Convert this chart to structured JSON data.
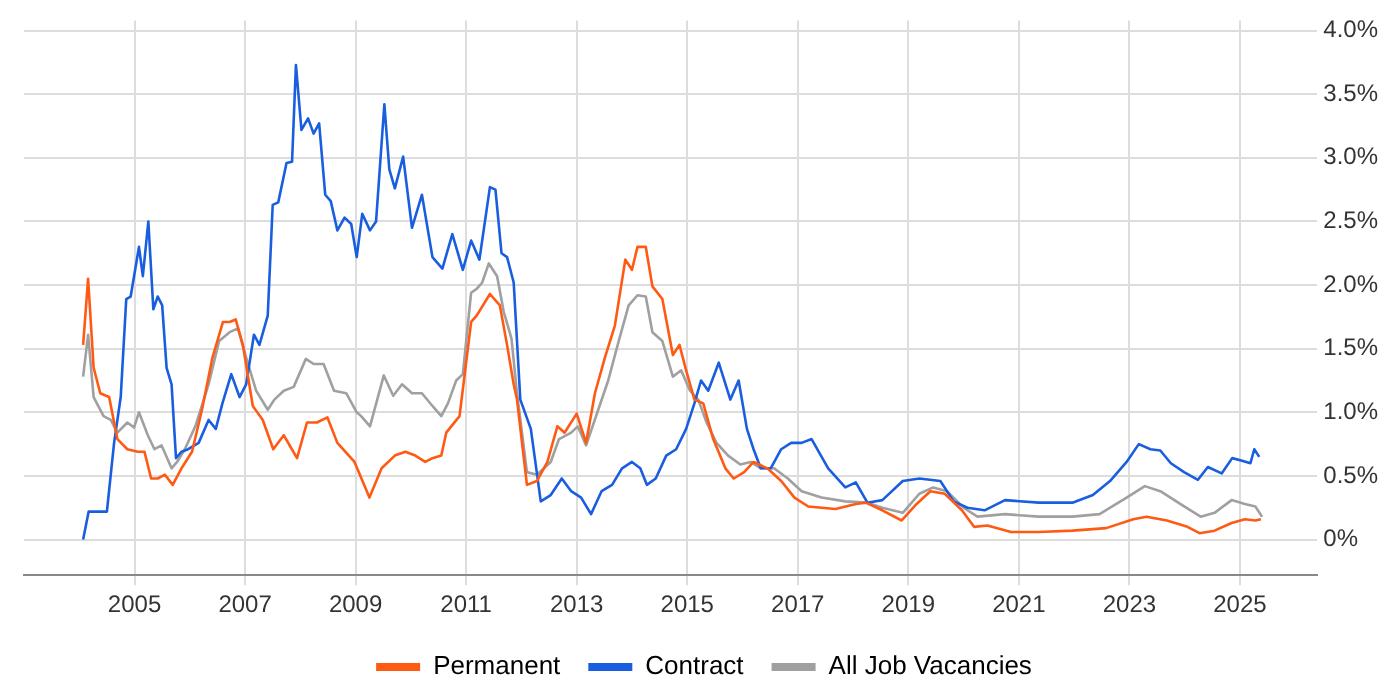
{
  "chart_data": {
    "type": "line",
    "xlim": [
      2003.0,
      2026.4
    ],
    "xticks": [
      2005,
      2007,
      2009,
      2011,
      2013,
      2015,
      2017,
      2019,
      2021,
      2023,
      2025
    ],
    "ylim": [
      -0.28,
      4.08
    ],
    "yticks": [
      {
        "value": 0,
        "label": "0%"
      },
      {
        "value": 0.5,
        "label": "0.5%"
      },
      {
        "value": 1,
        "label": "1.0%"
      },
      {
        "value": 1.5,
        "label": "1.5%"
      },
      {
        "value": 2,
        "label": "2.0%"
      },
      {
        "value": 2.5,
        "label": "2.5%"
      },
      {
        "value": 3,
        "label": "3.0%"
      },
      {
        "value": 3.5,
        "label": "3.5%"
      },
      {
        "value": 4,
        "label": "4.0%"
      }
    ],
    "grid": true,
    "legend": "bottom",
    "marker": "none",
    "line_style": "solid",
    "series": [
      {
        "name": "Permanent",
        "color": "#ff5a14",
        "x": [
          2004.07,
          2004.16,
          2004.26,
          2004.38,
          2004.54,
          2004.69,
          2004.87,
          2005.06,
          2005.18,
          2005.3,
          2005.42,
          2005.55,
          2005.69,
          2005.85,
          2006.04,
          2006.22,
          2006.41,
          2006.6,
          2006.72,
          2006.83,
          2006.96,
          2007.14,
          2007.32,
          2007.51,
          2007.7,
          2007.94,
          2008.12,
          2008.3,
          2008.49,
          2008.67,
          2008.98,
          2009.25,
          2009.47,
          2009.71,
          2009.9,
          2010.08,
          2010.26,
          2010.39,
          2010.55,
          2010.64,
          2010.88,
          2011.09,
          2011.19,
          2011.43,
          2011.61,
          2011.74,
          2011.86,
          2011.92,
          2012.1,
          2012.28,
          2012.47,
          2012.65,
          2012.78,
          2013.0,
          2013.17,
          2013.33,
          2013.51,
          2013.69,
          2013.88,
          2014.0,
          2014.1,
          2014.25,
          2014.37,
          2014.55,
          2014.74,
          2014.86,
          2014.98,
          2015.13,
          2015.29,
          2015.47,
          2015.69,
          2015.84,
          2016.03,
          2016.2,
          2016.45,
          2016.7,
          2016.94,
          2017.19,
          2017.68,
          2018.05,
          2018.23,
          2018.53,
          2018.88,
          2019.15,
          2019.4,
          2019.66,
          2019.97,
          2020.19,
          2020.43,
          2020.86,
          2021.36,
          2021.97,
          2022.58,
          2023.07,
          2023.31,
          2023.68,
          2024.05,
          2024.27,
          2024.54,
          2024.85,
          2025.09,
          2025.28,
          2025.38
        ],
        "values": [
          1.53,
          2.05,
          1.35,
          1.15,
          1.12,
          0.79,
          0.71,
          0.69,
          0.69,
          0.48,
          0.48,
          0.51,
          0.43,
          0.56,
          0.69,
          1.02,
          1.43,
          1.71,
          1.71,
          1.73,
          1.53,
          1.05,
          0.94,
          0.71,
          0.82,
          0.64,
          0.92,
          0.92,
          0.96,
          0.76,
          0.61,
          0.33,
          0.56,
          0.66,
          0.69,
          0.66,
          0.61,
          0.64,
          0.66,
          0.84,
          0.97,
          1.71,
          1.76,
          1.93,
          1.84,
          1.53,
          1.22,
          1.1,
          0.43,
          0.46,
          0.61,
          0.89,
          0.84,
          0.99,
          0.76,
          1.15,
          1.43,
          1.68,
          2.2,
          2.12,
          2.3,
          2.3,
          1.99,
          1.89,
          1.45,
          1.53,
          1.33,
          1.1,
          1.07,
          0.79,
          0.56,
          0.48,
          0.53,
          0.61,
          0.56,
          0.46,
          0.33,
          0.26,
          0.24,
          0.28,
          0.29,
          0.23,
          0.15,
          0.28,
          0.38,
          0.36,
          0.23,
          0.1,
          0.11,
          0.06,
          0.06,
          0.07,
          0.09,
          0.16,
          0.18,
          0.15,
          0.1,
          0.05,
          0.07,
          0.13,
          0.16,
          0.15,
          0.16
        ]
      },
      {
        "name": "Contract",
        "color": "#1a5ee0",
        "x": [
          2004.07,
          2004.17,
          2004.5,
          2004.63,
          2004.75,
          2004.85,
          2004.93,
          2005.08,
          2005.15,
          2005.25,
          2005.34,
          2005.42,
          2005.5,
          2005.58,
          2005.67,
          2005.75,
          2005.85,
          2005.97,
          2006.16,
          2006.34,
          2006.47,
          2006.59,
          2006.75,
          2006.9,
          2007.02,
          2007.16,
          2007.26,
          2007.41,
          2007.5,
          2007.6,
          2007.75,
          2007.85,
          2007.92,
          2008.02,
          2008.14,
          2008.24,
          2008.34,
          2008.45,
          2008.55,
          2008.67,
          2008.8,
          2008.92,
          2009.02,
          2009.12,
          2009.26,
          2009.37,
          2009.52,
          2009.61,
          2009.71,
          2009.86,
          2010.02,
          2010.2,
          2010.39,
          2010.57,
          2010.75,
          2010.94,
          2011.09,
          2011.24,
          2011.43,
          2011.53,
          2011.64,
          2011.74,
          2011.86,
          2011.98,
          2012.17,
          2012.35,
          2012.53,
          2012.73,
          2012.9,
          2013.08,
          2013.26,
          2013.45,
          2013.64,
          2013.82,
          2014.0,
          2014.15,
          2014.27,
          2014.43,
          2014.62,
          2014.8,
          2014.98,
          2015.13,
          2015.25,
          2015.38,
          2015.57,
          2015.78,
          2015.93,
          2016.08,
          2016.2,
          2016.33,
          2016.51,
          2016.7,
          2016.88,
          2017.07,
          2017.25,
          2017.55,
          2017.86,
          2018.05,
          2018.26,
          2018.53,
          2018.9,
          2019.2,
          2019.58,
          2019.82,
          2020.07,
          2020.38,
          2020.75,
          2021.36,
          2021.97,
          2022.34,
          2022.65,
          2022.95,
          2023.17,
          2023.38,
          2023.56,
          2023.75,
          2023.99,
          2024.24,
          2024.42,
          2024.67,
          2024.86,
          2025.04,
          2025.19,
          2025.26,
          2025.35
        ],
        "values": [
          0.0,
          0.22,
          0.22,
          0.76,
          1.12,
          1.89,
          1.91,
          2.3,
          2.07,
          2.5,
          1.81,
          1.91,
          1.84,
          1.35,
          1.22,
          0.64,
          0.69,
          0.71,
          0.76,
          0.94,
          0.87,
          1.07,
          1.3,
          1.12,
          1.22,
          1.61,
          1.53,
          1.76,
          2.63,
          2.65,
          2.96,
          2.97,
          3.73,
          3.22,
          3.31,
          3.19,
          3.27,
          2.71,
          2.66,
          2.43,
          2.53,
          2.48,
          2.22,
          2.56,
          2.43,
          2.5,
          3.42,
          2.91,
          2.76,
          3.01,
          2.45,
          2.71,
          2.22,
          2.13,
          2.4,
          2.12,
          2.35,
          2.2,
          2.77,
          2.75,
          2.25,
          2.22,
          2.02,
          1.1,
          0.87,
          0.3,
          0.35,
          0.48,
          0.38,
          0.33,
          0.2,
          0.38,
          0.43,
          0.56,
          0.61,
          0.56,
          0.43,
          0.48,
          0.66,
          0.71,
          0.87,
          1.07,
          1.25,
          1.17,
          1.39,
          1.1,
          1.25,
          0.87,
          0.71,
          0.56,
          0.56,
          0.71,
          0.76,
          0.76,
          0.79,
          0.56,
          0.41,
          0.45,
          0.29,
          0.31,
          0.46,
          0.48,
          0.46,
          0.3,
          0.25,
          0.23,
          0.31,
          0.29,
          0.29,
          0.35,
          0.46,
          0.61,
          0.75,
          0.71,
          0.7,
          0.6,
          0.53,
          0.47,
          0.57,
          0.52,
          0.64,
          0.62,
          0.6,
          0.71,
          0.65
        ]
      },
      {
        "name": "All Job Vacancies",
        "color": "#a0a0a0",
        "x": [
          2004.07,
          2004.16,
          2004.26,
          2004.44,
          2004.57,
          2004.69,
          2004.87,
          2004.99,
          2005.08,
          2005.24,
          2005.36,
          2005.49,
          2005.67,
          2005.77,
          2005.91,
          2006.1,
          2006.34,
          2006.53,
          2006.72,
          2006.87,
          2007.02,
          2007.2,
          2007.41,
          2007.53,
          2007.7,
          2007.88,
          2008.1,
          2008.24,
          2008.42,
          2008.61,
          2008.83,
          2009.02,
          2009.1,
          2009.26,
          2009.51,
          2009.68,
          2009.84,
          2010.02,
          2010.2,
          2010.39,
          2010.55,
          2010.67,
          2010.82,
          2010.94,
          2011.09,
          2011.19,
          2011.29,
          2011.41,
          2011.56,
          2011.68,
          2011.82,
          2011.92,
          2012.1,
          2012.28,
          2012.53,
          2012.68,
          2012.9,
          2013.02,
          2013.17,
          2013.39,
          2013.57,
          2013.76,
          2013.94,
          2014.1,
          2014.25,
          2014.37,
          2014.55,
          2014.74,
          2014.89,
          2015.05,
          2015.2,
          2015.35,
          2015.53,
          2015.74,
          2015.96,
          2016.15,
          2016.33,
          2016.57,
          2016.82,
          2017.07,
          2017.43,
          2017.86,
          2018.26,
          2018.53,
          2018.9,
          2019.2,
          2019.45,
          2019.7,
          2020.0,
          2020.25,
          2020.75,
          2021.36,
          2021.97,
          2022.46,
          2022.95,
          2023.28,
          2023.56,
          2023.92,
          2024.29,
          2024.54,
          2024.85,
          2025.09,
          2025.28,
          2025.4
        ],
        "values": [
          1.28,
          1.61,
          1.12,
          0.97,
          0.94,
          0.84,
          0.92,
          0.88,
          1.0,
          0.82,
          0.71,
          0.74,
          0.56,
          0.61,
          0.71,
          0.89,
          1.22,
          1.56,
          1.63,
          1.66,
          1.43,
          1.17,
          1.02,
          1.1,
          1.17,
          1.2,
          1.42,
          1.38,
          1.38,
          1.17,
          1.15,
          1.0,
          0.97,
          0.89,
          1.29,
          1.13,
          1.22,
          1.15,
          1.15,
          1.05,
          0.97,
          1.07,
          1.25,
          1.3,
          1.94,
          1.97,
          2.02,
          2.17,
          2.07,
          1.79,
          1.58,
          1.15,
          0.53,
          0.51,
          0.61,
          0.79,
          0.84,
          0.89,
          0.74,
          1.02,
          1.25,
          1.56,
          1.84,
          1.92,
          1.91,
          1.63,
          1.56,
          1.28,
          1.33,
          1.17,
          1.1,
          0.92,
          0.76,
          0.66,
          0.59,
          0.61,
          0.56,
          0.56,
          0.48,
          0.38,
          0.33,
          0.3,
          0.29,
          0.25,
          0.21,
          0.36,
          0.41,
          0.38,
          0.25,
          0.18,
          0.2,
          0.18,
          0.18,
          0.2,
          0.33,
          0.42,
          0.38,
          0.28,
          0.18,
          0.21,
          0.31,
          0.28,
          0.26,
          0.18
        ]
      }
    ]
  }
}
